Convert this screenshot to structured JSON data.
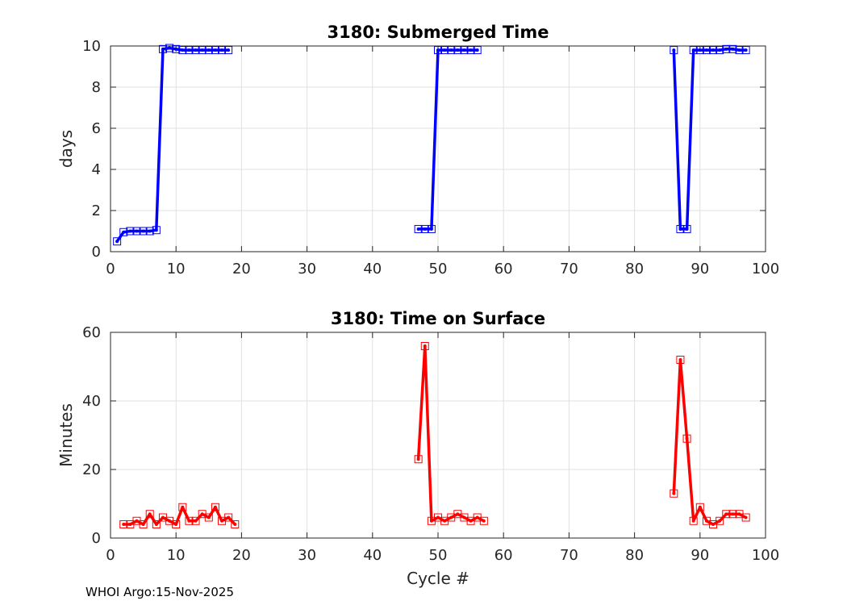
{
  "footer": "WHOI Argo:15-Nov-2025",
  "chart_data": [
    {
      "type": "line",
      "title": "3180: Submerged Time",
      "xlabel": "",
      "ylabel": "days",
      "xlim": [
        0,
        100
      ],
      "ylim": [
        0,
        10
      ],
      "xticks": [
        "0",
        "10",
        "20",
        "30",
        "40",
        "50",
        "60",
        "70",
        "80",
        "90",
        "100"
      ],
      "yticks": [
        "0",
        "2",
        "4",
        "6",
        "8",
        "10"
      ],
      "color": "#0000ff",
      "grid": true,
      "segments": [
        [
          [
            1,
            0.5
          ],
          [
            2,
            0.95
          ],
          [
            3,
            1.0
          ],
          [
            4,
            1.0
          ],
          [
            5,
            1.0
          ],
          [
            6,
            1.0
          ],
          [
            7,
            1.05
          ],
          [
            8,
            9.85
          ],
          [
            9,
            9.9
          ],
          [
            10,
            9.85
          ],
          [
            11,
            9.8
          ],
          [
            12,
            9.8
          ],
          [
            13,
            9.8
          ],
          [
            14,
            9.8
          ],
          [
            15,
            9.8
          ],
          [
            16,
            9.8
          ],
          [
            17,
            9.8
          ],
          [
            18,
            9.8
          ]
        ],
        [
          [
            47,
            1.1
          ],
          [
            48,
            1.1
          ],
          [
            49,
            1.1
          ],
          [
            50,
            9.8
          ],
          [
            51,
            9.8
          ],
          [
            52,
            9.8
          ],
          [
            53,
            9.8
          ],
          [
            54,
            9.8
          ],
          [
            55,
            9.8
          ],
          [
            56,
            9.8
          ]
        ],
        [
          [
            86,
            9.8
          ],
          [
            87,
            1.1
          ],
          [
            88,
            1.1
          ],
          [
            89,
            9.8
          ],
          [
            90,
            9.8
          ],
          [
            91,
            9.8
          ],
          [
            92,
            9.8
          ],
          [
            93,
            9.8
          ],
          [
            94,
            9.85
          ],
          [
            95,
            9.85
          ],
          [
            96,
            9.8
          ],
          [
            97,
            9.8
          ]
        ]
      ]
    },
    {
      "type": "line",
      "title": "3180: Time on Surface",
      "xlabel": "Cycle #",
      "ylabel": "Minutes",
      "xlim": [
        0,
        100
      ],
      "ylim": [
        0,
        60
      ],
      "xticks": [
        "0",
        "10",
        "20",
        "30",
        "40",
        "50",
        "60",
        "70",
        "80",
        "90",
        "100"
      ],
      "yticks": [
        "0",
        "20",
        "40",
        "60"
      ],
      "color": "#ff0000",
      "grid": true,
      "segments": [
        [
          [
            2,
            4
          ],
          [
            3,
            4
          ],
          [
            4,
            5
          ],
          [
            5,
            4
          ],
          [
            6,
            7
          ],
          [
            7,
            4
          ],
          [
            8,
            6
          ],
          [
            9,
            5
          ],
          [
            10,
            4
          ],
          [
            11,
            9
          ],
          [
            12,
            5
          ],
          [
            13,
            5
          ],
          [
            14,
            7
          ],
          [
            15,
            6
          ],
          [
            16,
            9
          ],
          [
            17,
            5
          ],
          [
            18,
            6
          ],
          [
            19,
            4
          ]
        ],
        [
          [
            47,
            23
          ],
          [
            48,
            56
          ],
          [
            49,
            5
          ],
          [
            50,
            6
          ],
          [
            51,
            5
          ],
          [
            52,
            6
          ],
          [
            53,
            7
          ],
          [
            54,
            6
          ],
          [
            55,
            5
          ],
          [
            56,
            6
          ],
          [
            57,
            5
          ]
        ],
        [
          [
            86,
            13
          ],
          [
            87,
            52
          ],
          [
            88,
            29
          ],
          [
            89,
            5
          ],
          [
            90,
            9
          ],
          [
            91,
            5
          ],
          [
            92,
            4
          ],
          [
            93,
            5
          ],
          [
            94,
            7
          ],
          [
            95,
            7
          ],
          [
            96,
            7
          ],
          [
            97,
            6
          ]
        ]
      ]
    }
  ]
}
